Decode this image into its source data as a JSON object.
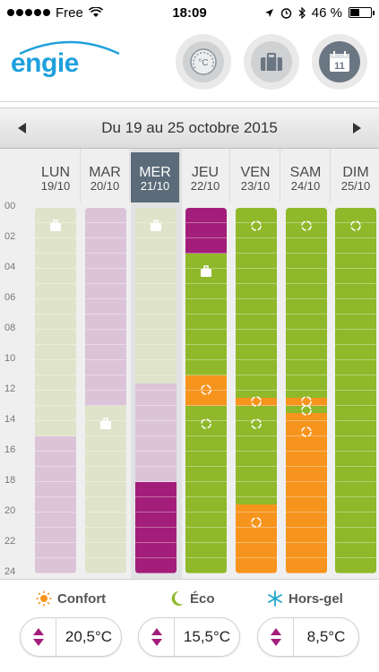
{
  "status": {
    "carrier": "Free",
    "time": "18:09",
    "battery": "46 %"
  },
  "header": {
    "logo": "engie"
  },
  "nav": {
    "title": "Du 19 au 25 octobre 2015"
  },
  "hours": [
    "00",
    "02",
    "04",
    "06",
    "08",
    "10",
    "12",
    "14",
    "16",
    "18",
    "20",
    "22",
    "24"
  ],
  "days": [
    {
      "name": "LUN",
      "date": "19/10"
    },
    {
      "name": "MAR",
      "date": "20/10"
    },
    {
      "name": "MER",
      "date": "21/10"
    },
    {
      "name": "JEU",
      "date": "22/10"
    },
    {
      "name": "VEN",
      "date": "23/10"
    },
    {
      "name": "SAM",
      "date": "24/10"
    },
    {
      "name": "DIM",
      "date": "25/10"
    }
  ],
  "legend": {
    "confort": {
      "label": "Confort",
      "value": "20,5°C"
    },
    "eco": {
      "label": "Éco",
      "value": "15,5°C"
    },
    "horsgel": {
      "label": "Hors-gel",
      "value": "8,5°C"
    }
  },
  "colors": {
    "accent": "#1ea0dc",
    "pale_green": "#dfe3c9",
    "pale_pink": "#dcc4d8",
    "green": "#8fb82a",
    "orange": "#f7941d",
    "magenta": "#a31e7a"
  }
}
